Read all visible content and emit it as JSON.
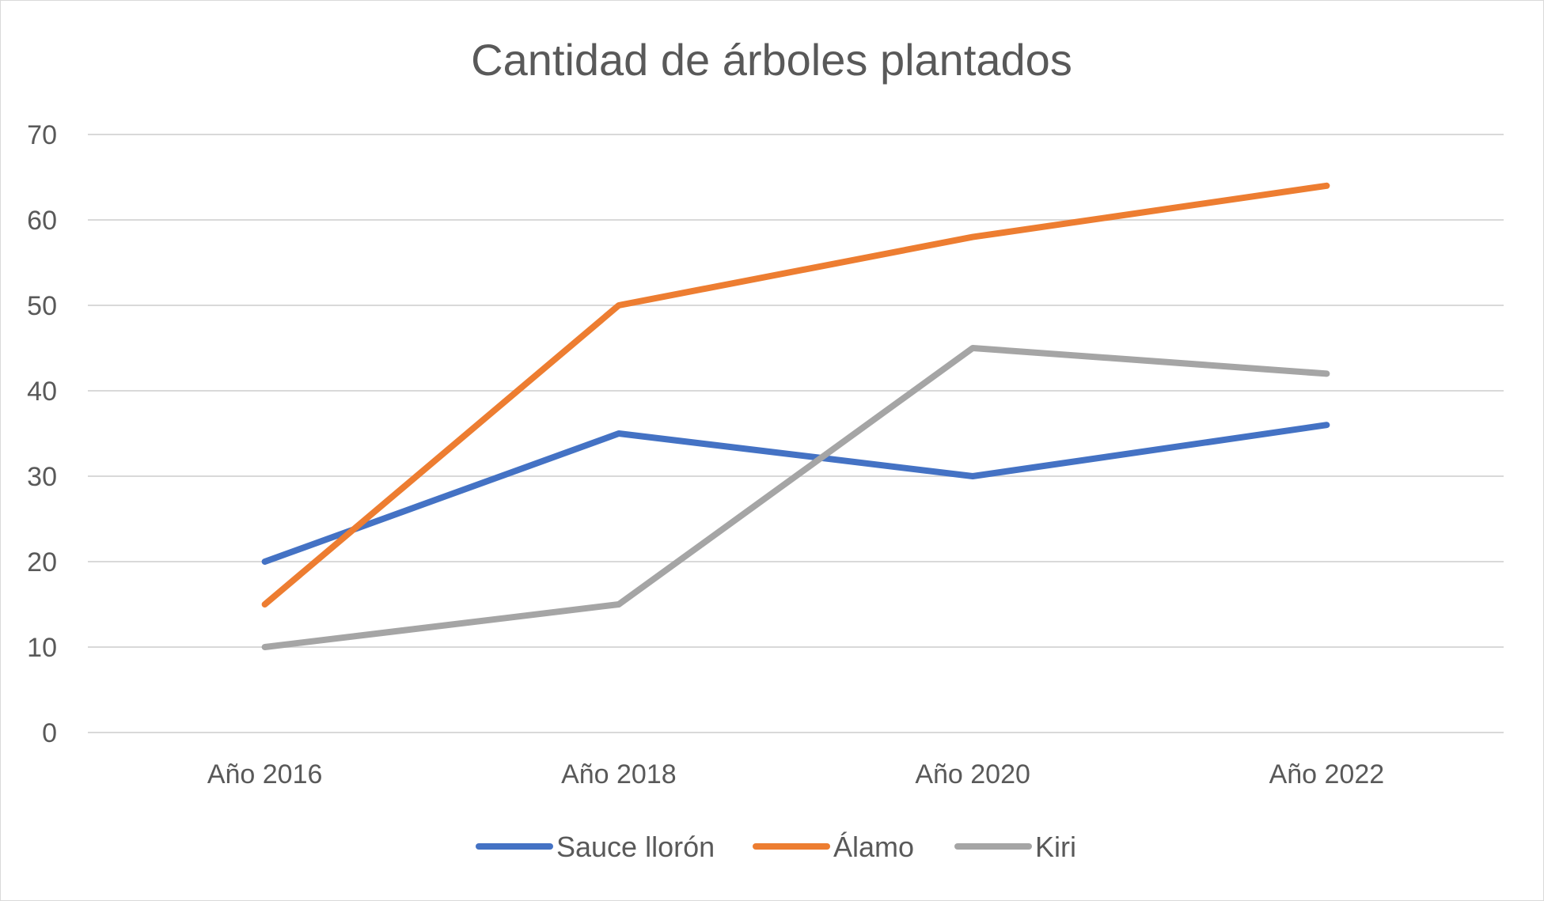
{
  "chart_data": {
    "type": "line",
    "title": "Cantidad de árboles plantados",
    "xlabel": "",
    "ylabel": "",
    "categories": [
      "Año 2016",
      "Año 2018",
      "Año 2020",
      "Año 2022"
    ],
    "ylim": [
      0,
      70
    ],
    "yticks": [
      0,
      10,
      20,
      30,
      40,
      50,
      60,
      70
    ],
    "grid": true,
    "legend_position": "bottom",
    "series": [
      {
        "name": "Sauce llorón",
        "color": "#4472C4",
        "values": [
          20,
          35,
          30,
          36
        ]
      },
      {
        "name": "Álamo",
        "color": "#ED7D31",
        "values": [
          15,
          50,
          58,
          64
        ]
      },
      {
        "name": "Kiri",
        "color": "#A5A5A5",
        "values": [
          10,
          15,
          45,
          42
        ]
      }
    ]
  }
}
